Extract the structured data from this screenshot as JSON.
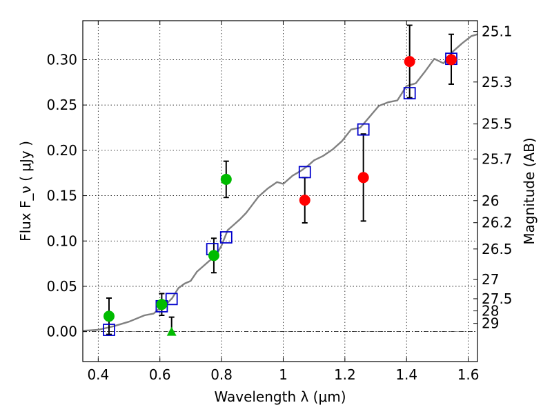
{
  "chart_data": {
    "type": "scatter",
    "xlabel": "Wavelength  λ (μm)",
    "ylabel": "Flux  F_ν  ( μJy )",
    "y2label": "Magnitude (AB)",
    "xlim": [
      0.35,
      1.63
    ],
    "ylim": [
      -0.033,
      0.343
    ],
    "grid": true,
    "xticks": [
      0.4,
      0.6,
      0.8,
      1.0,
      1.2,
      1.4,
      1.6
    ],
    "xtick_labels": [
      "0.4",
      "0.6",
      "0.8",
      "1",
      "1.2",
      "1.4",
      "1.6"
    ],
    "yticks": [
      0.0,
      0.05,
      0.1,
      0.15,
      0.2,
      0.25,
      0.3
    ],
    "ytick_labels": [
      "0.00",
      "0.05",
      "0.10",
      "0.15",
      "0.20",
      "0.25",
      "0.30"
    ],
    "y2ticks": [
      {
        "label": "25.1",
        "flux": 0.3311
      },
      {
        "label": "25.3",
        "flux": 0.2754
      },
      {
        "label": "25.5",
        "flux": 0.2291
      },
      {
        "label": "25.7",
        "flux": 0.1905
      },
      {
        "label": "26",
        "flux": 0.1445
      },
      {
        "label": "26.2",
        "flux": 0.1202
      },
      {
        "label": "26.5",
        "flux": 0.0912
      },
      {
        "label": "27",
        "flux": 0.0575
      },
      {
        "label": "27.5",
        "flux": 0.0363
      },
      {
        "label": "28",
        "flux": 0.0229
      },
      {
        "label": "29",
        "flux": 0.0091
      }
    ],
    "series": [
      {
        "kind": "model_sed_line",
        "color": "#808080",
        "x": [
          0.35,
          0.4,
          0.45,
          0.5,
          0.55,
          0.58,
          0.6,
          0.62,
          0.64,
          0.66,
          0.68,
          0.7,
          0.72,
          0.74,
          0.76,
          0.78,
          0.8,
          0.82,
          0.84,
          0.86,
          0.88,
          0.9,
          0.92,
          0.95,
          0.98,
          1.0,
          1.03,
          1.06,
          1.08,
          1.1,
          1.13,
          1.16,
          1.19,
          1.22,
          1.25,
          1.28,
          1.31,
          1.34,
          1.37,
          1.4,
          1.43,
          1.46,
          1.49,
          1.52,
          1.55,
          1.58,
          1.61,
          1.63
        ],
        "y": [
          0.001,
          0.002,
          0.006,
          0.011,
          0.018,
          0.02,
          0.026,
          0.03,
          0.037,
          0.048,
          0.053,
          0.056,
          0.066,
          0.072,
          0.078,
          0.083,
          0.095,
          0.112,
          0.118,
          0.124,
          0.131,
          0.14,
          0.149,
          0.158,
          0.165,
          0.163,
          0.172,
          0.178,
          0.183,
          0.189,
          0.194,
          0.201,
          0.21,
          0.223,
          0.225,
          0.237,
          0.249,
          0.253,
          0.255,
          0.271,
          0.274,
          0.287,
          0.301,
          0.296,
          0.309,
          0.318,
          0.326,
          0.328
        ]
      },
      {
        "kind": "model_band_flux",
        "marker": "open-square",
        "color": "#0000cc",
        "x": [
          0.435,
          0.606,
          0.638,
          0.77,
          0.815,
          1.07,
          1.26,
          1.41,
          1.545
        ],
        "y": [
          0.002,
          0.028,
          0.036,
          0.091,
          0.104,
          0.176,
          0.223,
          0.263,
          0.301
        ]
      },
      {
        "kind": "green_detections",
        "marker": "circle",
        "color": "#00bb00",
        "x": [
          0.435,
          0.606,
          0.775,
          0.815
        ],
        "y": [
          0.017,
          0.03,
          0.084,
          0.168
        ],
        "yerr": [
          0.02,
          0.012,
          0.019,
          0.02
        ]
      },
      {
        "kind": "green_upper_limit",
        "marker": "triangle",
        "color": "#00bb00",
        "x": [
          0.638
        ],
        "y": [
          0.0
        ],
        "ytop": [
          0.016
        ]
      },
      {
        "kind": "red_detections",
        "marker": "circle",
        "color": "#ff0000",
        "x": [
          1.07,
          1.26,
          1.41,
          1.545
        ],
        "y": [
          0.145,
          0.17,
          0.298,
          0.3
        ],
        "ylow": [
          0.12,
          0.122,
          0.258,
          0.273
        ],
        "yhigh": [
          0.17,
          0.218,
          0.338,
          0.328
        ]
      }
    ]
  }
}
